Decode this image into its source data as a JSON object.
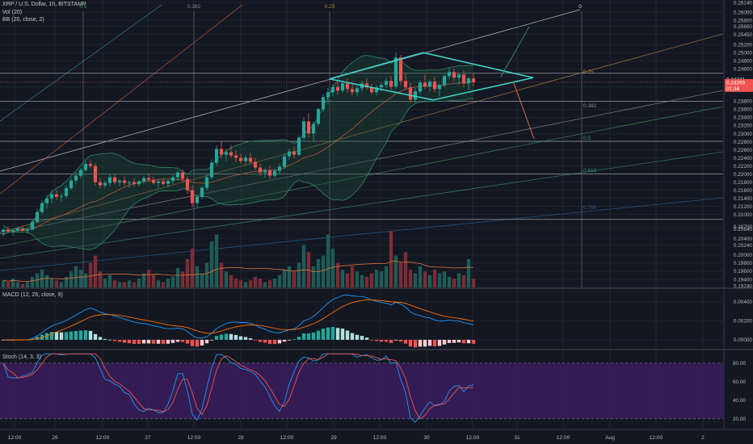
{
  "header": {
    "symbol": "XRP / U.S. Dollar, 1h, BITSTAMP",
    "vol": "Vol (20)",
    "bb": "BB (20, close, 2)",
    "macd": "MACD (12, 26, close, 9)",
    "stoch": "Stoch (14, 3, 3)"
  },
  "price_labels": {
    "last": "0.24269",
    "countdown": "01:34",
    "marker": "0.24341"
  },
  "colors": {
    "bg": "#131722",
    "grid": "#2a2e39",
    "up": "#26a69a",
    "down": "#ef5350",
    "bb": "#2e7d5b",
    "pattern": "#3fd1c8",
    "macd": "#2196f3",
    "signal": "#ff6d00",
    "stoch_k": "#2196f3",
    "stoch_d": "#ef5350",
    "stoch_band": "#3a1d5c",
    "axis_text": "#b2b5be"
  },
  "chart_data": [
    {
      "type": "candlestick",
      "title": "XRP / U.S. Dollar, 1h, BITSTAMP",
      "x_ticks": [
        "12:00",
        "26",
        "12:00",
        "27",
        "12:00",
        "28",
        "12:00",
        "29",
        "12:00",
        "30",
        "12:00",
        "31",
        "12:00",
        "Aug",
        "12:00",
        "2"
      ],
      "y_ticks": [
        0.2624,
        0.26,
        0.258,
        0.2565,
        0.2545,
        0.252,
        0.25,
        0.248,
        0.246,
        0.244,
        0.2415,
        0.238,
        0.236,
        0.234,
        0.232,
        0.23,
        0.228,
        0.226,
        0.224,
        0.222,
        0.22,
        0.218,
        0.216,
        0.214,
        0.212,
        0.21,
        0.207,
        0.2064,
        0.204,
        0.2024,
        0.2,
        0.198,
        0.196,
        0.194,
        0.1924
      ],
      "ylim": [
        0.1924,
        0.2624
      ],
      "fib_labels": [
        "0.5",
        "0.382",
        "0.25",
        "0",
        "0.25",
        "0.382",
        "0.5",
        "0.618",
        "0.786"
      ],
      "ohlc": [
        [
          0.2057,
          0.2066,
          0.2046,
          0.2062
        ],
        [
          0.2062,
          0.207,
          0.2055,
          0.2058
        ],
        [
          0.2058,
          0.2064,
          0.2049,
          0.2061
        ],
        [
          0.2061,
          0.2068,
          0.2056,
          0.2065
        ],
        [
          0.2065,
          0.2071,
          0.2058,
          0.206
        ],
        [
          0.206,
          0.2066,
          0.2052,
          0.2063
        ],
        [
          0.2063,
          0.2088,
          0.206,
          0.2082
        ],
        [
          0.2082,
          0.2114,
          0.2078,
          0.2106
        ],
        [
          0.2106,
          0.2135,
          0.21,
          0.2128
        ],
        [
          0.2128,
          0.2148,
          0.2115,
          0.214
        ],
        [
          0.214,
          0.2158,
          0.2128,
          0.215
        ],
        [
          0.215,
          0.216,
          0.2136,
          0.2144
        ],
        [
          0.2144,
          0.2152,
          0.2132,
          0.2146
        ],
        [
          0.2146,
          0.2172,
          0.214,
          0.2165
        ],
        [
          0.2165,
          0.219,
          0.216,
          0.2184
        ],
        [
          0.2184,
          0.2204,
          0.2176,
          0.2196
        ],
        [
          0.2196,
          0.2215,
          0.219,
          0.221
        ],
        [
          0.221,
          0.2232,
          0.2206,
          0.2225
        ],
        [
          0.2225,
          0.2234,
          0.2214,
          0.222
        ],
        [
          0.222,
          0.2226,
          0.2172,
          0.218
        ],
        [
          0.218,
          0.219,
          0.2164,
          0.2172
        ],
        [
          0.2172,
          0.2184,
          0.2166,
          0.2178
        ],
        [
          0.2178,
          0.22,
          0.217,
          0.2192
        ],
        [
          0.2192,
          0.22,
          0.2175,
          0.218
        ],
        [
          0.218,
          0.2188,
          0.217,
          0.2184
        ],
        [
          0.2184,
          0.2194,
          0.2172,
          0.2178
        ],
        [
          0.2178,
          0.2185,
          0.2166,
          0.218
        ],
        [
          0.218,
          0.219,
          0.2168,
          0.2175
        ],
        [
          0.2175,
          0.2186,
          0.217,
          0.2182
        ],
        [
          0.2182,
          0.2196,
          0.2176,
          0.219
        ],
        [
          0.219,
          0.2202,
          0.218,
          0.2186
        ],
        [
          0.2186,
          0.2194,
          0.2174,
          0.2178
        ],
        [
          0.2178,
          0.2186,
          0.2166,
          0.2182
        ],
        [
          0.2182,
          0.219,
          0.2172,
          0.2176
        ],
        [
          0.2176,
          0.2186,
          0.2168,
          0.2183
        ],
        [
          0.2183,
          0.2198,
          0.2176,
          0.2192
        ],
        [
          0.2192,
          0.221,
          0.2184,
          0.2204
        ],
        [
          0.2204,
          0.2212,
          0.218,
          0.2188
        ],
        [
          0.2188,
          0.2195,
          0.215,
          0.216
        ],
        [
          0.216,
          0.2172,
          0.2118,
          0.2128
        ],
        [
          0.2128,
          0.215,
          0.2116,
          0.2144
        ],
        [
          0.2144,
          0.217,
          0.2138,
          0.2166
        ],
        [
          0.2166,
          0.2198,
          0.216,
          0.2192
        ],
        [
          0.2192,
          0.2236,
          0.2186,
          0.2228
        ],
        [
          0.2228,
          0.227,
          0.222,
          0.2262
        ],
        [
          0.2262,
          0.2282,
          0.2238,
          0.2248
        ],
        [
          0.2248,
          0.2262,
          0.2232,
          0.2254
        ],
        [
          0.2254,
          0.2272,
          0.224,
          0.2246
        ],
        [
          0.2246,
          0.2258,
          0.223,
          0.224
        ],
        [
          0.224,
          0.225,
          0.2226,
          0.2232
        ],
        [
          0.2232,
          0.2246,
          0.2224,
          0.224
        ],
        [
          0.224,
          0.2252,
          0.2226,
          0.223
        ],
        [
          0.223,
          0.224,
          0.221,
          0.2216
        ],
        [
          0.2216,
          0.2226,
          0.2196,
          0.2204
        ],
        [
          0.2204,
          0.2216,
          0.2192,
          0.221
        ],
        [
          0.221,
          0.222,
          0.2188,
          0.2196
        ],
        [
          0.2196,
          0.2214,
          0.219,
          0.2208
        ],
        [
          0.2208,
          0.2225,
          0.22,
          0.2218
        ],
        [
          0.2218,
          0.2252,
          0.2212,
          0.2244
        ],
        [
          0.2244,
          0.2262,
          0.2236,
          0.2256
        ],
        [
          0.2256,
          0.2268,
          0.2238,
          0.2248
        ],
        [
          0.2248,
          0.2296,
          0.2244,
          0.229
        ],
        [
          0.229,
          0.234,
          0.2284,
          0.233
        ],
        [
          0.233,
          0.235,
          0.229,
          0.23
        ],
        [
          0.23,
          0.233,
          0.2282,
          0.2324
        ],
        [
          0.2324,
          0.2364,
          0.2318,
          0.236
        ],
        [
          0.236,
          0.2398,
          0.2354,
          0.239
        ],
        [
          0.239,
          0.2412,
          0.2372,
          0.2402
        ],
        [
          0.2402,
          0.2422,
          0.2392,
          0.2415
        ],
        [
          0.2415,
          0.2428,
          0.2396,
          0.2406
        ],
        [
          0.2406,
          0.243,
          0.24,
          0.2424
        ],
        [
          0.2424,
          0.2436,
          0.24,
          0.241
        ],
        [
          0.241,
          0.2426,
          0.2394,
          0.2402
        ],
        [
          0.2402,
          0.2418,
          0.2392,
          0.2412
        ],
        [
          0.2412,
          0.243,
          0.2404,
          0.2424
        ],
        [
          0.2424,
          0.2436,
          0.2408,
          0.2414
        ],
        [
          0.2414,
          0.2422,
          0.2396,
          0.2402
        ],
        [
          0.2402,
          0.242,
          0.2394,
          0.2414
        ],
        [
          0.2414,
          0.2426,
          0.2404,
          0.242
        ],
        [
          0.242,
          0.2438,
          0.2412,
          0.243
        ],
        [
          0.243,
          0.2442,
          0.2408,
          0.2416
        ],
        [
          0.2416,
          0.25,
          0.241,
          0.2488
        ],
        [
          0.2488,
          0.2494,
          0.242,
          0.243
        ],
        [
          0.243,
          0.245,
          0.2408,
          0.2414
        ],
        [
          0.2414,
          0.2426,
          0.2376,
          0.2384
        ],
        [
          0.2384,
          0.2412,
          0.2376,
          0.2404
        ],
        [
          0.2404,
          0.2432,
          0.2398,
          0.2426
        ],
        [
          0.2426,
          0.2446,
          0.241,
          0.2416
        ],
        [
          0.2416,
          0.2434,
          0.2404,
          0.2428
        ],
        [
          0.2428,
          0.244,
          0.2402,
          0.241
        ],
        [
          0.241,
          0.2424,
          0.2392,
          0.242
        ],
        [
          0.242,
          0.2448,
          0.2414,
          0.2442
        ],
        [
          0.2442,
          0.2462,
          0.2434,
          0.2452
        ],
        [
          0.2452,
          0.246,
          0.243,
          0.2438
        ],
        [
          0.2438,
          0.245,
          0.242,
          0.2446
        ],
        [
          0.2446,
          0.2456,
          0.2414,
          0.2424
        ],
        [
          0.2424,
          0.244,
          0.2408,
          0.2436
        ],
        [
          0.2436,
          0.2448,
          0.2416,
          0.2427
        ]
      ],
      "volume": [
        4,
        3,
        5,
        3,
        2,
        3,
        6,
        8,
        10,
        7,
        5,
        4,
        3,
        6,
        9,
        12,
        10,
        8,
        14,
        18,
        9,
        5,
        7,
        4,
        3,
        3,
        4,
        3,
        5,
        8,
        10,
        7,
        4,
        3,
        5,
        6,
        11,
        9,
        16,
        22,
        12,
        8,
        14,
        26,
        30,
        14,
        9,
        7,
        5,
        4,
        3,
        4,
        6,
        5,
        3,
        4,
        5,
        7,
        10,
        12,
        9,
        14,
        24,
        20,
        12,
        16,
        18,
        30,
        22,
        14,
        10,
        8,
        12,
        9,
        7,
        6,
        8,
        10,
        9,
        12,
        32,
        18,
        14,
        20,
        10,
        8,
        12,
        9,
        7,
        10,
        8,
        9,
        6,
        5,
        8,
        7,
        16,
        5
      ],
      "price_lines": [
        0.2449,
        0.238,
        0.2281,
        0.22,
        0.2088
      ],
      "pattern": {
        "left": [
          30,
          0.2435
        ],
        "top": [
          76,
          0.25
        ],
        "right": [
          118,
          0.2438
        ],
        "bottom": [
          78,
          0.2383
        ]
      }
    },
    {
      "type": "line",
      "title": "MACD (12, 26, close, 9)",
      "y_ticks": [
        0.004,
        0.002,
        0.0
      ],
      "ylim": [
        -0.0006,
        0.005
      ]
    },
    {
      "type": "line",
      "title": "Stoch (14, 3, 3)",
      "y_ticks": [
        80.0,
        60.0,
        40.0,
        20.0
      ],
      "ylim": [
        12,
        92
      ],
      "band": [
        20,
        80
      ]
    }
  ]
}
